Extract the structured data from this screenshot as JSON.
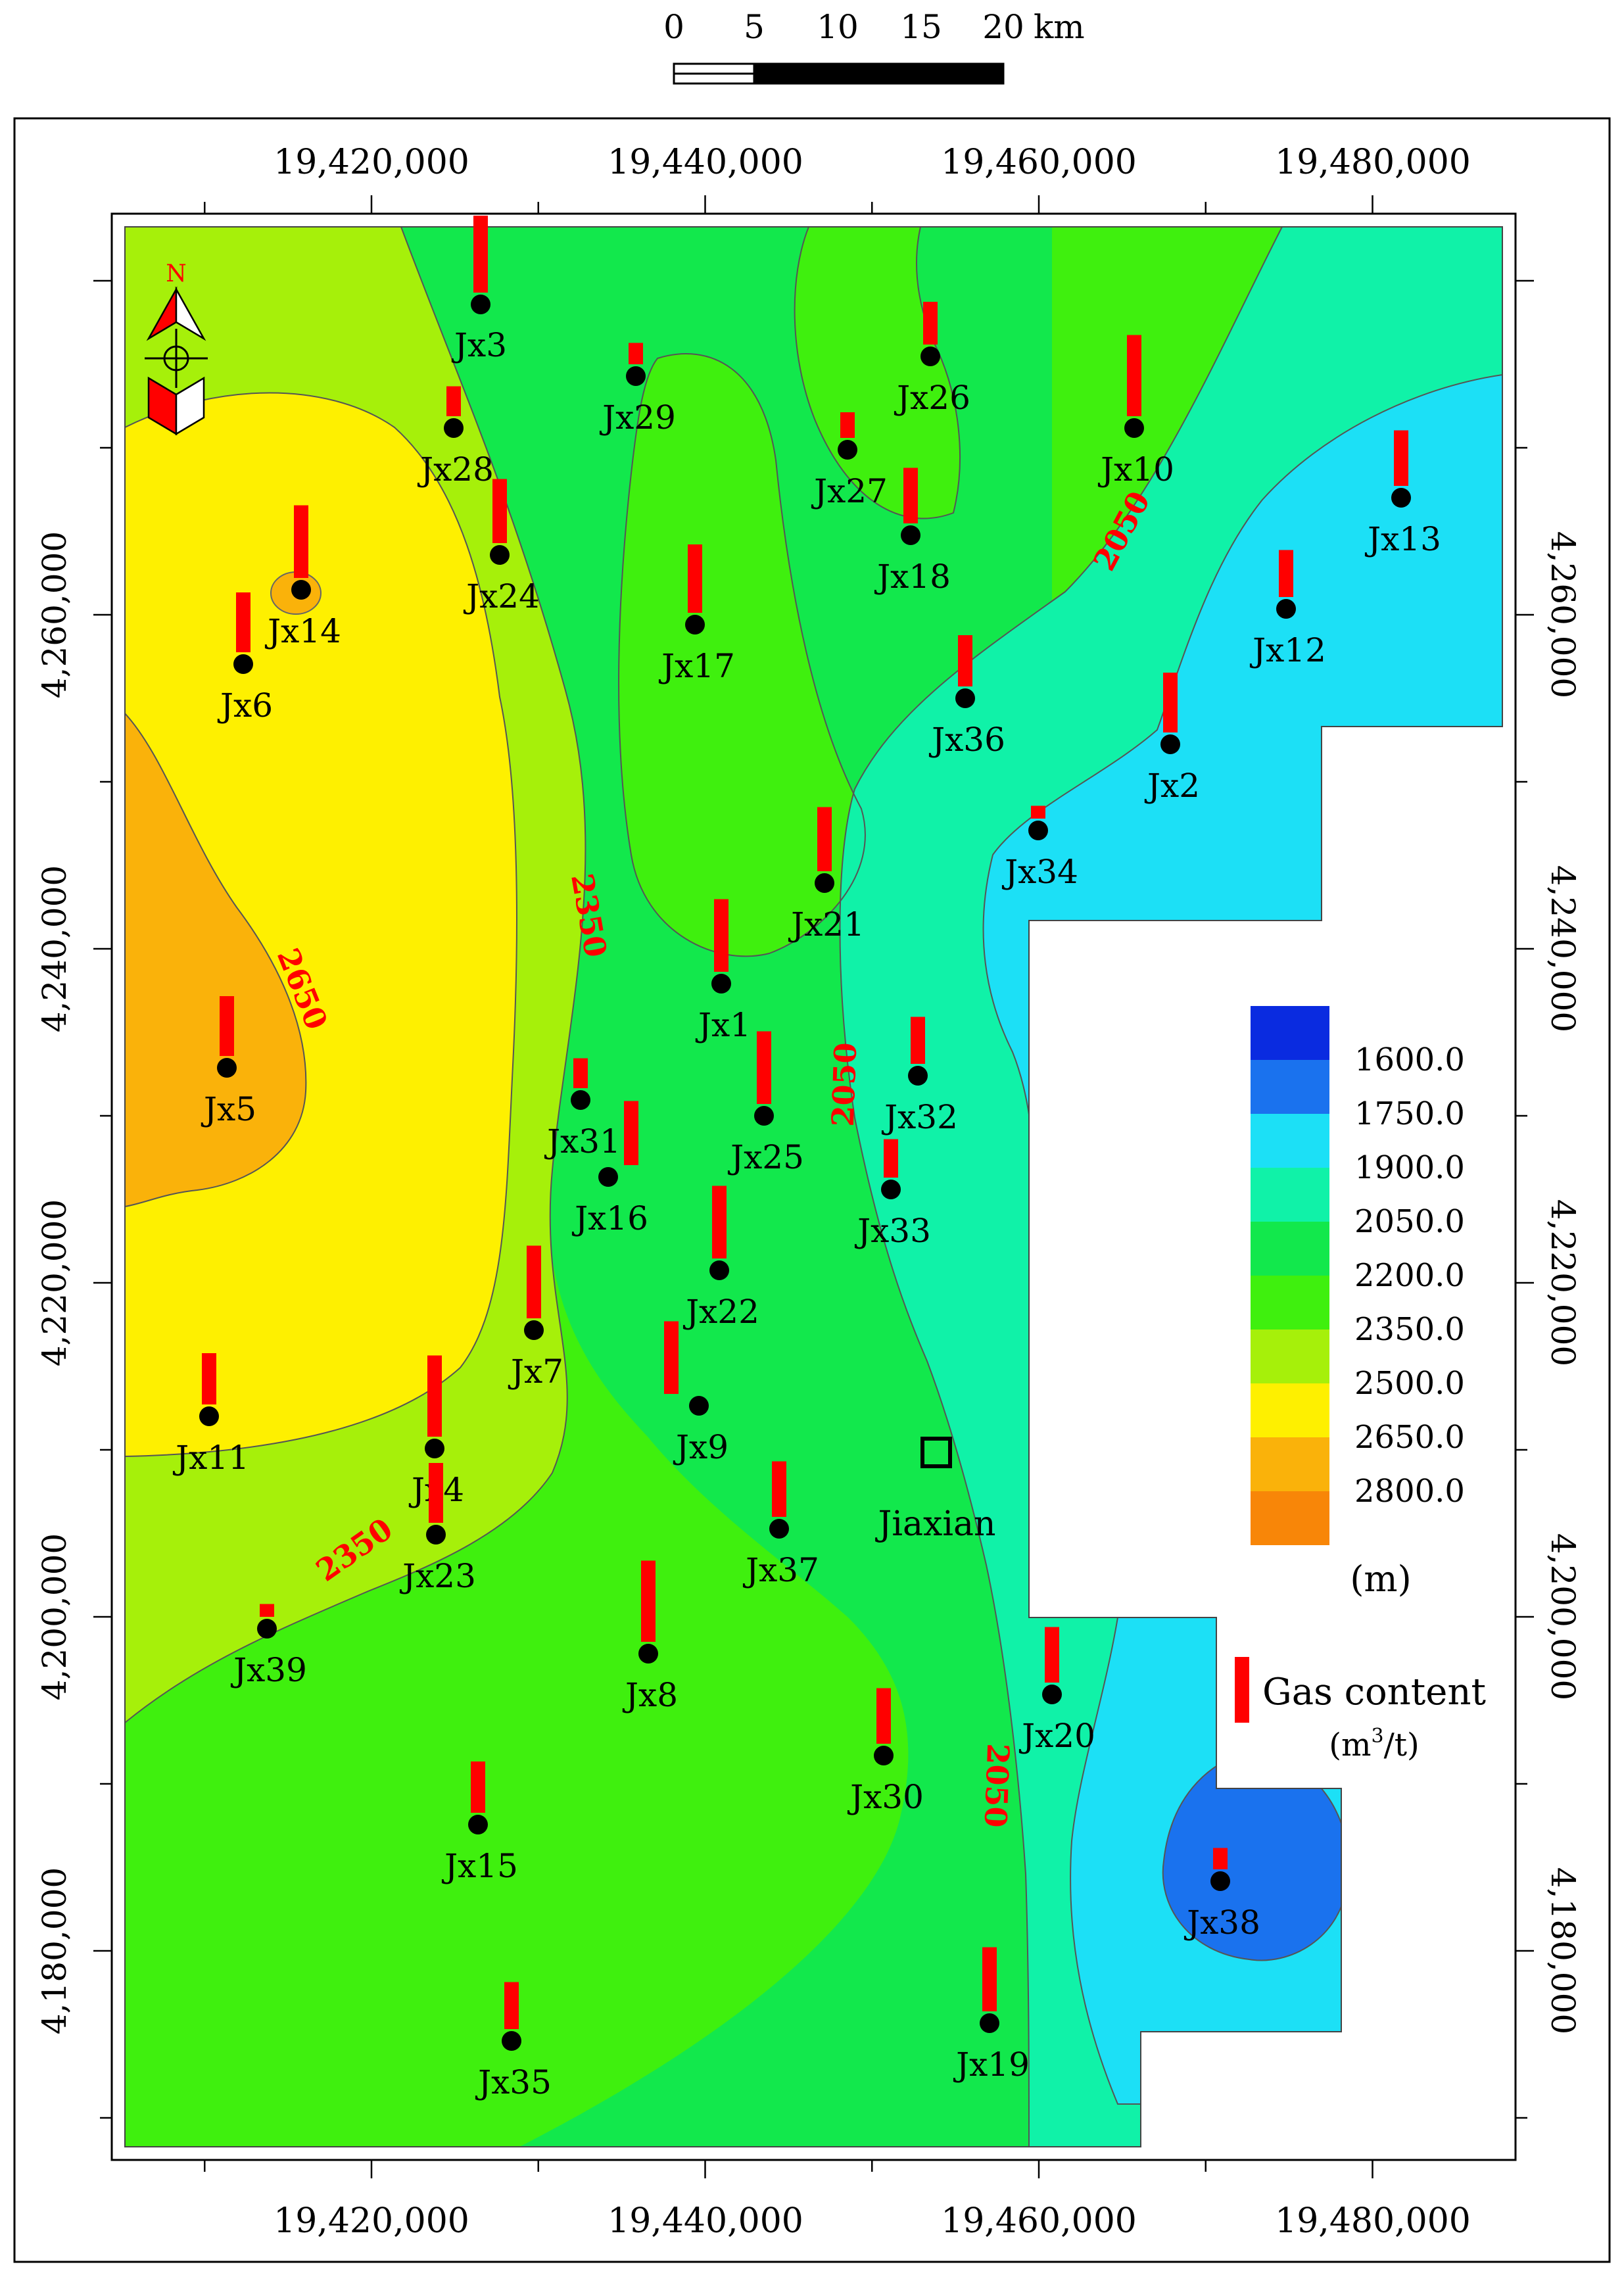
{
  "scale_bar": {
    "ticks": [
      "0",
      "5",
      "10",
      "15",
      "20"
    ],
    "unit": "km"
  },
  "north_arrow": {
    "label": "N",
    "icon": "north-arrow-icon"
  },
  "axes": {
    "x_ticks": [
      "19,420,000",
      "19,440,000",
      "19,460,000",
      "19,480,000"
    ],
    "y_ticks": [
      "4,260,000",
      "4,240,000",
      "4,220,000",
      "4,200,000",
      "4,180,000"
    ]
  },
  "contour_labels": [
    "2050",
    "2350",
    "2650",
    "2050",
    "2350",
    "2050"
  ],
  "wells": [
    {
      "name": "Jx3",
      "gas": 0.9
    },
    {
      "name": "Jx29",
      "gas": 0.25
    },
    {
      "name": "Jx26",
      "gas": 0.5
    },
    {
      "name": "Jx10",
      "gas": 0.95
    },
    {
      "name": "Jx28",
      "gas": 0.35
    },
    {
      "name": "Jx27",
      "gas": 0.3
    },
    {
      "name": "Jx13",
      "gas": 0.65
    },
    {
      "name": "Jx24",
      "gas": 0.75
    },
    {
      "name": "Jx18",
      "gas": 0.65
    },
    {
      "name": "Jx14",
      "gas": 0.85
    },
    {
      "name": "Jx17",
      "gas": 0.8
    },
    {
      "name": "Jx12",
      "gas": 0.55
    },
    {
      "name": "Jx6",
      "gas": 0.7
    },
    {
      "name": "Jx36",
      "gas": 0.6
    },
    {
      "name": "Jx2",
      "gas": 0.7
    },
    {
      "name": "Jx34",
      "gas": 0.15
    },
    {
      "name": "Jx21",
      "gas": 0.75
    },
    {
      "name": "Jx1",
      "gas": 0.85
    },
    {
      "name": "Jx5",
      "gas": 0.7
    },
    {
      "name": "Jx32",
      "gas": 0.55
    },
    {
      "name": "Jx31",
      "gas": 0.35
    },
    {
      "name": "Jx25",
      "gas": 0.85
    },
    {
      "name": "Jx16",
      "gas": 0.75
    },
    {
      "name": "Jx33",
      "gas": 0.45
    },
    {
      "name": "Jx22",
      "gas": 0.85
    },
    {
      "name": "Jx7",
      "gas": 0.85
    },
    {
      "name": "Jx11",
      "gas": 0.6
    },
    {
      "name": "Jx4",
      "gas": 0.95
    },
    {
      "name": "Jx9",
      "gas": 0.85
    },
    {
      "name": "Jx23",
      "gas": 0.7
    },
    {
      "name": "Jx37",
      "gas": 0.65
    },
    {
      "name": "Jx39",
      "gas": 0.15
    },
    {
      "name": "Jx8",
      "gas": 0.95
    },
    {
      "name": "Jx20",
      "gas": 0.65
    },
    {
      "name": "Jx30",
      "gas": 0.65
    },
    {
      "name": "Jx15",
      "gas": 0.6
    },
    {
      "name": "Jx38",
      "gas": 0.25
    },
    {
      "name": "Jx35",
      "gas": 0.55
    },
    {
      "name": "Jx19",
      "gas": 0.75
    }
  ],
  "city": {
    "name": "Jiaxian"
  },
  "legend": {
    "colors": [
      "#0a2be0",
      "#1a72ee",
      "#1ce0f6",
      "#10f2a8",
      "#12e84c",
      "#3ff00e",
      "#a6f00a",
      "#fef000",
      "#fab20a",
      "#f88608"
    ],
    "values": [
      "1600.0",
      "1750.0",
      "1900.0",
      "2050.0",
      "2200.0",
      "2350.0",
      "2500.0",
      "2650.0",
      "2800.0"
    ],
    "unit": "(m)"
  },
  "gas_legend": {
    "label": "Gas content",
    "unit_base": "(m",
    "unit_sup": "3",
    "unit_tail": "/t)"
  }
}
